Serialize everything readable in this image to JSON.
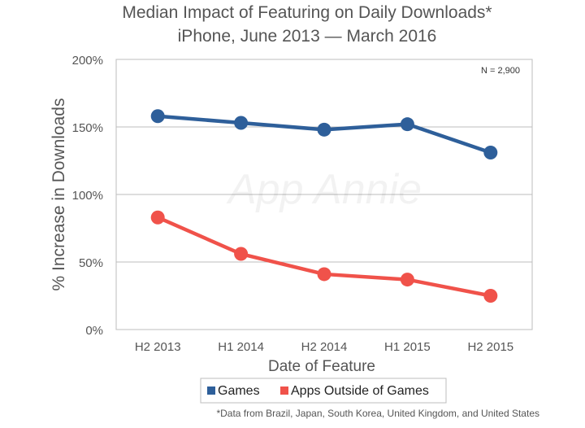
{
  "chart_data": {
    "type": "line",
    "title": "Median Impact of Featuring on Daily Downloads*",
    "subtitle": "iPhone, June 2013 — March 2016",
    "xlabel": "Date of Feature",
    "ylabel": "% Increase in Downloads",
    "categories": [
      "H2 2013",
      "H1 2014",
      "H2 2014",
      "H1 2015",
      "H2 2015"
    ],
    "ylim": [
      0,
      200
    ],
    "yticks": [
      0,
      50,
      100,
      150,
      200
    ],
    "ytick_labels": [
      "0%",
      "50%",
      "100%",
      "150%",
      "200%"
    ],
    "grid": true,
    "legend_position": "bottom",
    "series": [
      {
        "name": "Games",
        "color": "#2e5f9a",
        "values": [
          158,
          153,
          148,
          152,
          131
        ]
      },
      {
        "name": "Apps Outside of Games",
        "color": "#f0524a",
        "values": [
          83,
          56,
          41,
          37,
          25
        ]
      }
    ],
    "annotation": "N = 2,900",
    "watermark": "App Annie",
    "footnote": "*Data from Brazil, Japan, South Korea, United Kingdom, and United States"
  }
}
